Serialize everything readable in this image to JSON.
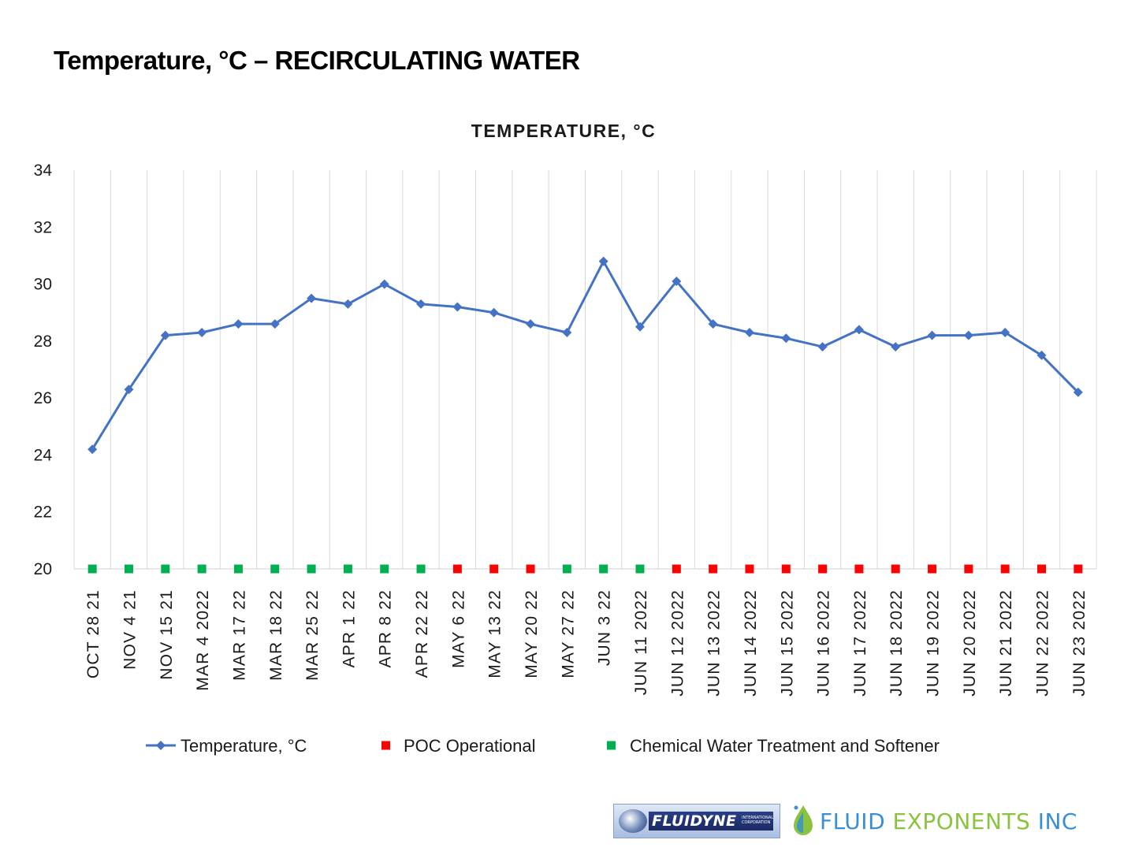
{
  "page_title": "Temperature, °C – RECIRCULATING WATER",
  "chart_data": {
    "type": "line",
    "title": "TEMPERATURE, °C",
    "xlabel": "",
    "ylabel": "",
    "ylim": [
      20,
      34
    ],
    "yticks": [
      20,
      22,
      24,
      26,
      28,
      30,
      32,
      34
    ],
    "grid": "vertical",
    "legend_position": "bottom",
    "categories": [
      "OCT 28 21",
      "NOV 4 21",
      "NOV 15 21",
      "MAR 4 2022",
      "MAR 17 22",
      "MAR 18 22",
      "MAR 25 22",
      "APR 1 22",
      "APR 8 22",
      "APR 22 22",
      "MAY 6 22",
      "MAY 13 22",
      "MAY 20 22",
      "MAY 27 22",
      "JUN 3 22",
      "JUN 11 2022",
      "JUN 12 2022",
      "JUN 13 2022",
      "JUN 14 2022",
      "JUN 15 2022",
      "JUN 16 2022",
      "JUN 17 2022",
      "JUN 18 2022",
      "JUN 19 2022",
      "JUN 20 2022",
      "JUN 21 2022",
      "JUN 22 2022",
      "JUN 23 2022"
    ],
    "series": [
      {
        "name": "Temperature, °C",
        "color": "#4472c4",
        "marker": "diamond",
        "values": [
          24.2,
          26.3,
          28.2,
          28.3,
          28.6,
          28.6,
          29.5,
          29.3,
          30.0,
          29.3,
          29.2,
          29.0,
          28.6,
          28.3,
          30.8,
          28.5,
          30.1,
          28.6,
          28.3,
          28.1,
          27.8,
          28.4,
          27.8,
          28.2,
          28.2,
          28.3,
          27.5,
          26.2
        ]
      },
      {
        "name": "POC Operational",
        "color": "#ff0000",
        "marker": "square",
        "values": [
          null,
          null,
          null,
          null,
          null,
          null,
          null,
          null,
          null,
          null,
          20,
          20,
          20,
          null,
          null,
          null,
          20,
          20,
          20,
          20,
          20,
          20,
          20,
          20,
          20,
          20,
          20,
          20
        ]
      },
      {
        "name": "Chemical Water Treatment and Softener",
        "color": "#00b050",
        "marker": "square",
        "values": [
          20,
          20,
          20,
          20,
          20,
          20,
          20,
          20,
          20,
          20,
          null,
          null,
          null,
          20,
          20,
          20,
          null,
          null,
          null,
          null,
          null,
          null,
          null,
          null,
          null,
          null,
          null,
          null
        ]
      }
    ]
  },
  "logos": {
    "fluidyne_name": "FLUIDYNE",
    "fluidyne_sub_1": "INTERNATIONAL",
    "fluidyne_sub_2": "CORPORATION",
    "fe_word_1": "FLUID",
    "fe_word_2": "EXPONENTS",
    "fe_word_3": "INC"
  }
}
